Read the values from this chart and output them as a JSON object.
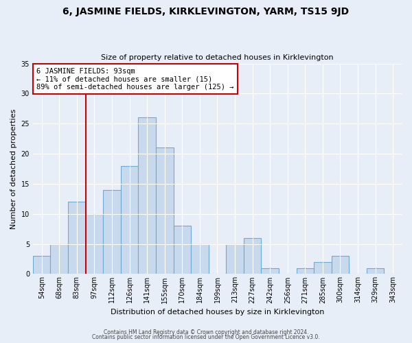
{
  "title": "6, JASMINE FIELDS, KIRKLEVINGTON, YARM, TS15 9JD",
  "subtitle": "Size of property relative to detached houses in Kirklevington",
  "xlabel": "Distribution of detached houses by size in Kirklevington",
  "ylabel": "Number of detached properties",
  "bar_labels": [
    "54sqm",
    "68sqm",
    "83sqm",
    "97sqm",
    "112sqm",
    "126sqm",
    "141sqm",
    "155sqm",
    "170sqm",
    "184sqm",
    "199sqm",
    "213sqm",
    "227sqm",
    "242sqm",
    "256sqm",
    "271sqm",
    "285sqm",
    "300sqm",
    "314sqm",
    "329sqm",
    "343sqm"
  ],
  "bar_values": [
    3,
    5,
    12,
    10,
    14,
    18,
    26,
    21,
    8,
    5,
    0,
    5,
    6,
    1,
    0,
    1,
    2,
    3,
    0,
    1,
    0
  ],
  "bar_color": "#c8d9ee",
  "bar_edge_color": "#6aaad4",
  "vline_x_index": 3,
  "vline_color": "#cc0000",
  "annotation_text": "6 JASMINE FIELDS: 93sqm\n← 11% of detached houses are smaller (15)\n89% of semi-detached houses are larger (125) →",
  "annotation_box_color": "#ffffff",
  "annotation_box_edge_color": "#cc0000",
  "ylim": [
    0,
    35
  ],
  "yticks": [
    0,
    5,
    10,
    15,
    20,
    25,
    30,
    35
  ],
  "footer_line1": "Contains HM Land Registry data © Crown copyright and database right 2024.",
  "footer_line2": "Contains public sector information licensed under the Open Government Licence v3.0.",
  "bg_color": "#e8eef8",
  "plot_bg_color": "#e8eef8",
  "grid_color": "#ffffff",
  "title_fontsize": 10,
  "subtitle_fontsize": 8,
  "ylabel_fontsize": 8,
  "xlabel_fontsize": 8,
  "tick_fontsize": 7,
  "ann_fontsize": 7.5,
  "footer_fontsize": 5.5
}
